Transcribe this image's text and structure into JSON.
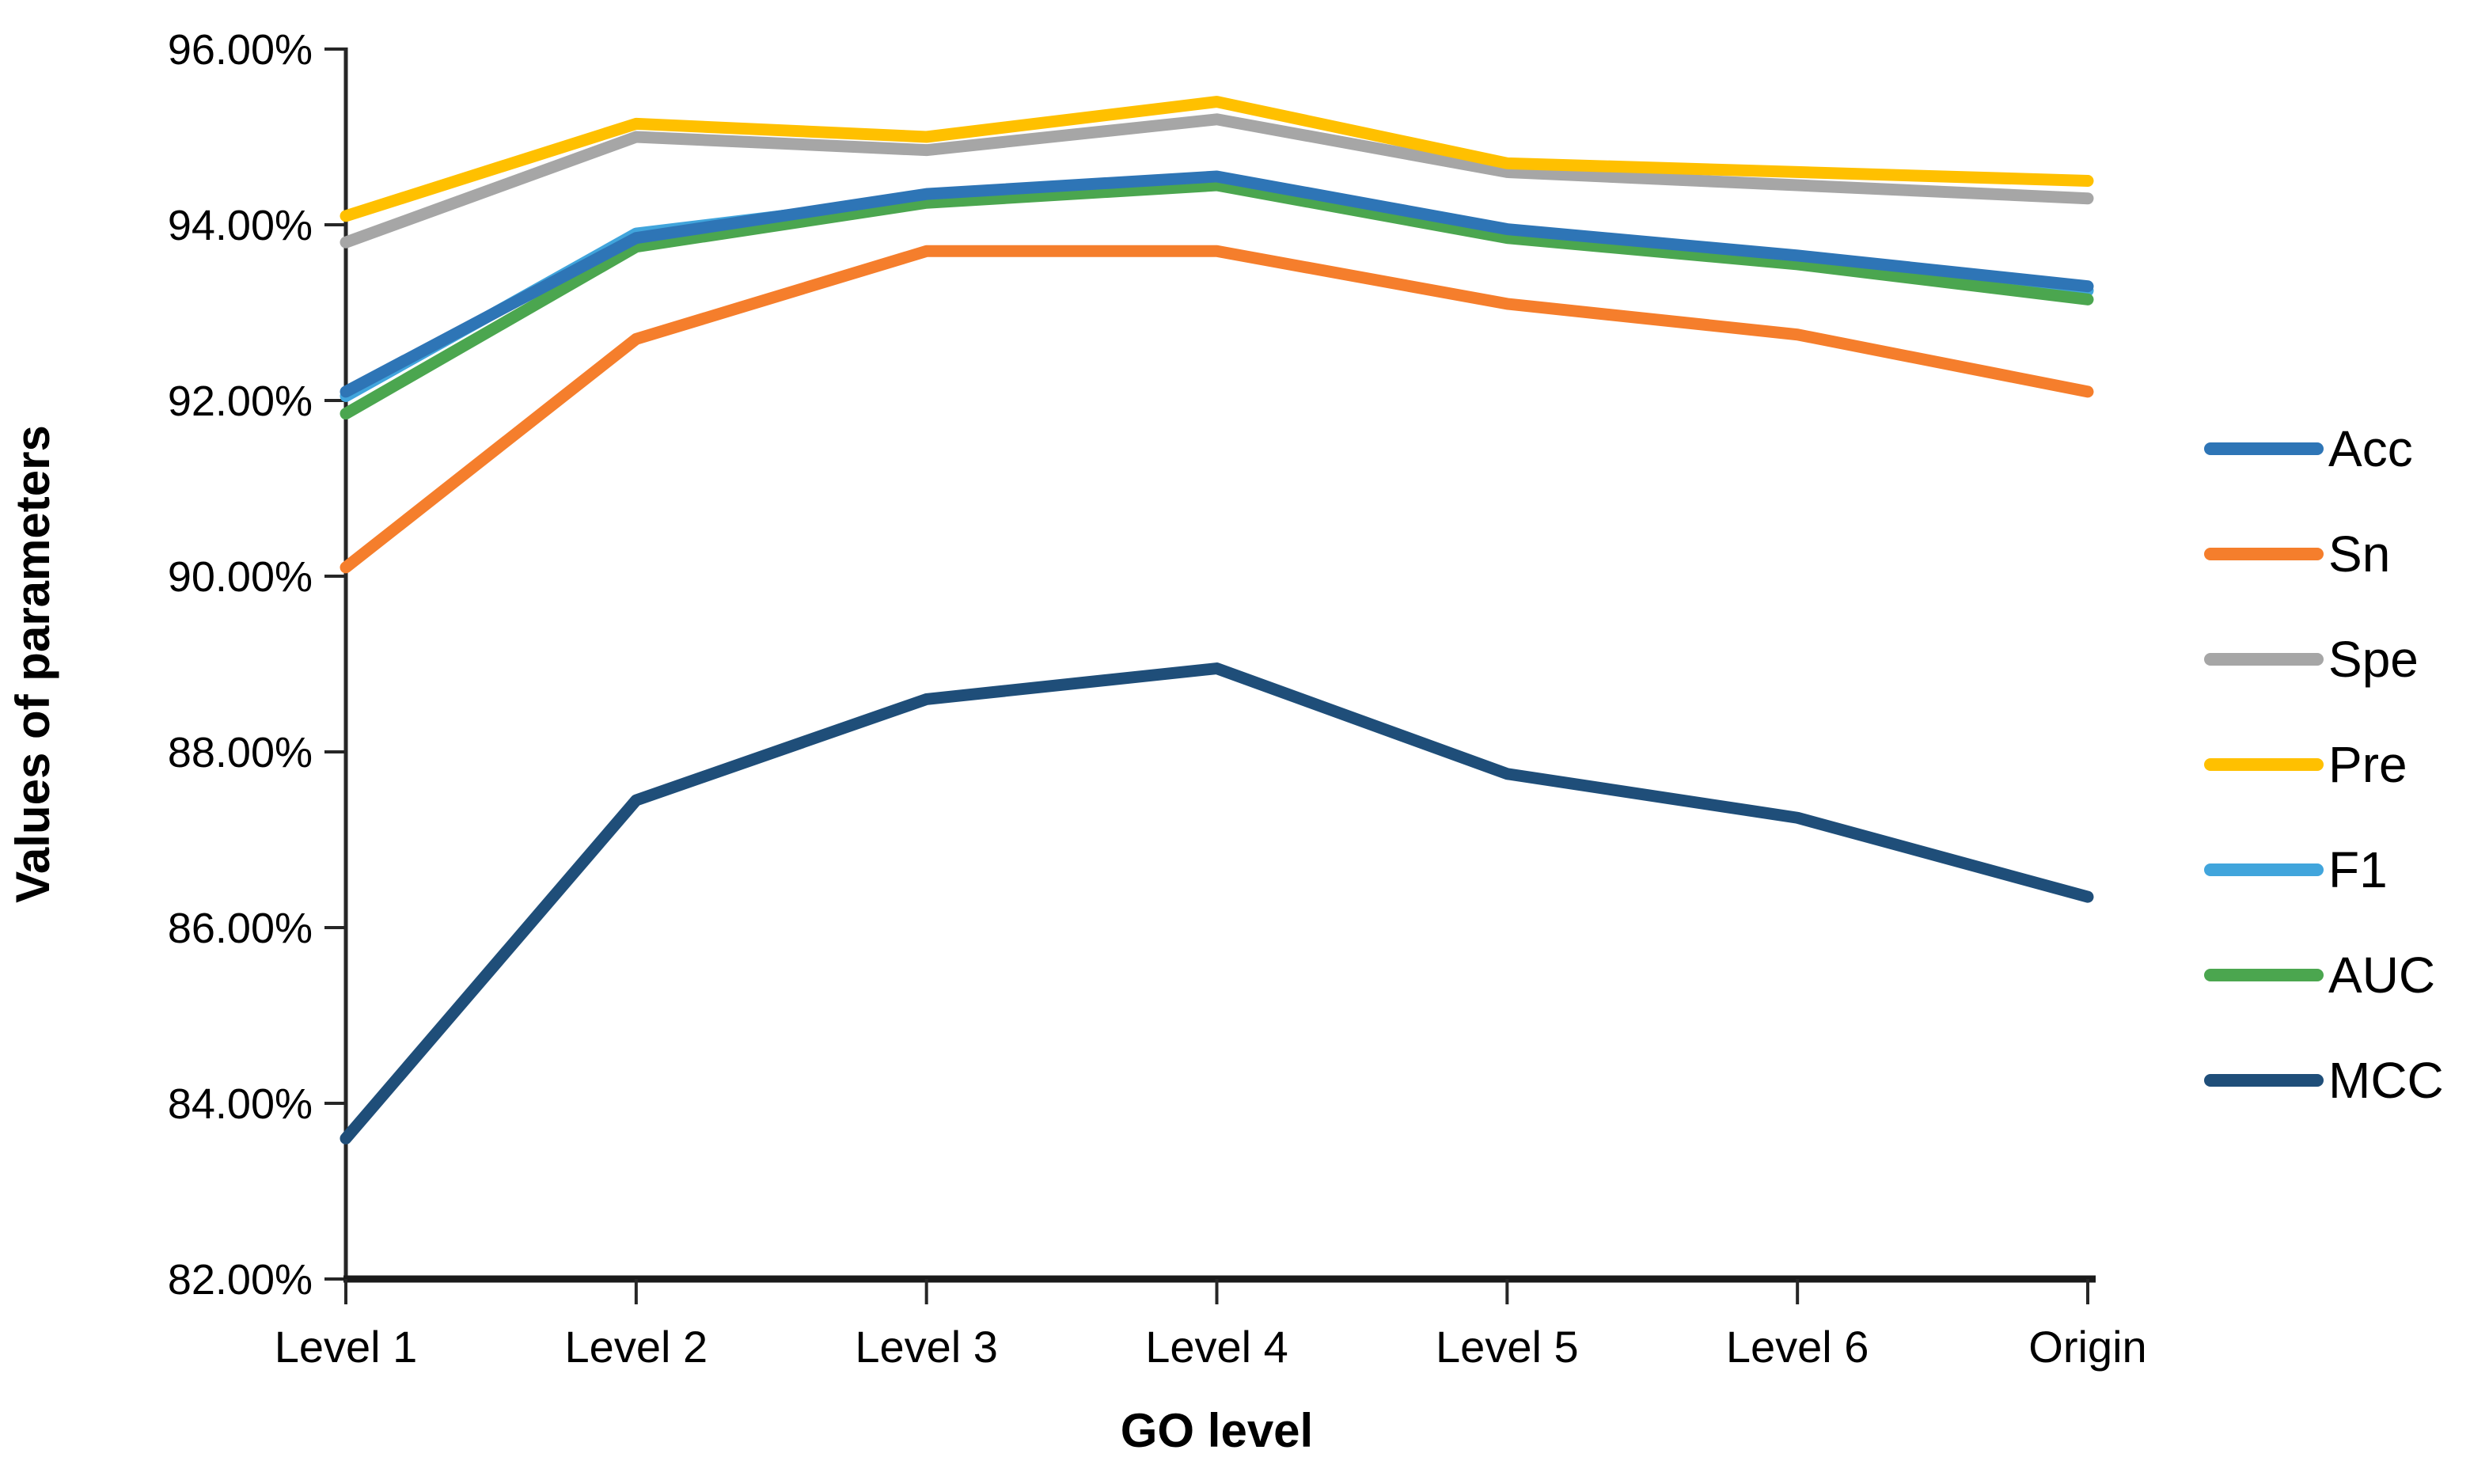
{
  "chart_data": {
    "type": "line",
    "title": "",
    "xlabel": "GO level",
    "ylabel": "Values of parameters",
    "categories": [
      "Level 1",
      "Level 2",
      "Level 3",
      "Level 4",
      "Level 5",
      "Level 6",
      "Origin"
    ],
    "series": [
      {
        "name": "Acc",
        "color": "#2E75B6",
        "values": [
          92.1,
          93.85,
          94.35,
          94.55,
          93.95,
          93.65,
          93.3
        ]
      },
      {
        "name": "Sn",
        "color": "#F57E2C",
        "values": [
          90.1,
          92.7,
          93.7,
          93.7,
          93.1,
          92.75,
          92.1
        ]
      },
      {
        "name": "Spe",
        "color": "#A6A6A6",
        "values": [
          93.8,
          95.0,
          94.85,
          95.2,
          94.6,
          94.45,
          94.3
        ]
      },
      {
        "name": "Pre",
        "color": "#FFC000",
        "values": [
          94.1,
          95.15,
          95.0,
          95.4,
          94.7,
          94.6,
          94.5
        ]
      },
      {
        "name": "F1",
        "color": "#41A5DC",
        "values": [
          92.05,
          93.9,
          94.3,
          94.52,
          93.9,
          93.6,
          93.25
        ]
      },
      {
        "name": "AUC",
        "color": "#4BA64F",
        "values": [
          91.85,
          93.75,
          94.25,
          94.45,
          93.85,
          93.55,
          93.15
        ]
      },
      {
        "name": "MCC",
        "color": "#1F4E79",
        "values": [
          83.6,
          87.45,
          88.6,
          88.95,
          87.75,
          87.25,
          86.35
        ]
      }
    ],
    "y_axis": {
      "min": 82,
      "max": 96,
      "step": 2,
      "tick_labels": [
        "96.00%",
        "94.00%",
        "92.00%",
        "90.00%",
        "88.00%",
        "86.00%",
        "84.00%",
        "82.00%"
      ]
    },
    "legend": {
      "position": "right"
    },
    "grid": false,
    "z_order": [
      "Sn",
      "Spe",
      "Pre",
      "F1",
      "AUC",
      "Acc",
      "MCC"
    ]
  },
  "colors": {
    "axis": "#262626",
    "text": "#000000",
    "background": "#FFFFFF"
  }
}
